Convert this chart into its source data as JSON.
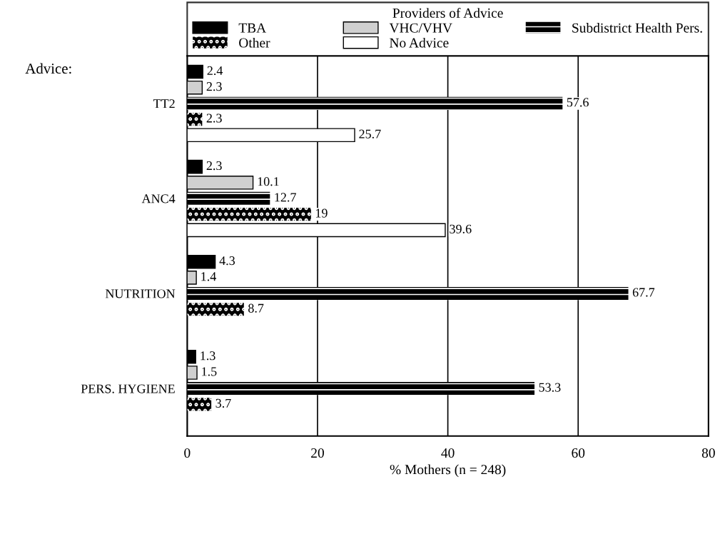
{
  "chart_data": {
    "type": "bar",
    "orientation": "horizontal",
    "categories": [
      "TT2",
      "ANC4",
      "NUTRITION",
      "PERS. HYGIENE"
    ],
    "series": [
      {
        "name": "TBA",
        "color": "#000000",
        "values": [
          2.4,
          2.3,
          4.3,
          1.3
        ]
      },
      {
        "name": "VHC/VHV",
        "color": "#d0d0d0",
        "values": [
          2.3,
          10.1,
          1.4,
          1.5
        ]
      },
      {
        "name": "Subdistrict Health Pers.",
        "color": "#000000",
        "values": [
          57.6,
          12.7,
          67.7,
          53.3
        ]
      },
      {
        "name": "Other",
        "color": "#000000",
        "values": [
          2.3,
          19,
          8.7,
          3.7
        ]
      },
      {
        "name": "No Advice",
        "color": "#ffffff",
        "values": [
          25.7,
          39.6,
          null,
          null
        ]
      }
    ],
    "xlim": [
      0,
      80
    ],
    "xticks": [
      0,
      20,
      40,
      60,
      80
    ],
    "xlabel": "% Mothers (n = 248)",
    "legend_title": "Providers of Advice",
    "legend": "top",
    "grid": "x",
    "data_labels": true,
    "annotations": [
      "Advice:"
    ]
  }
}
